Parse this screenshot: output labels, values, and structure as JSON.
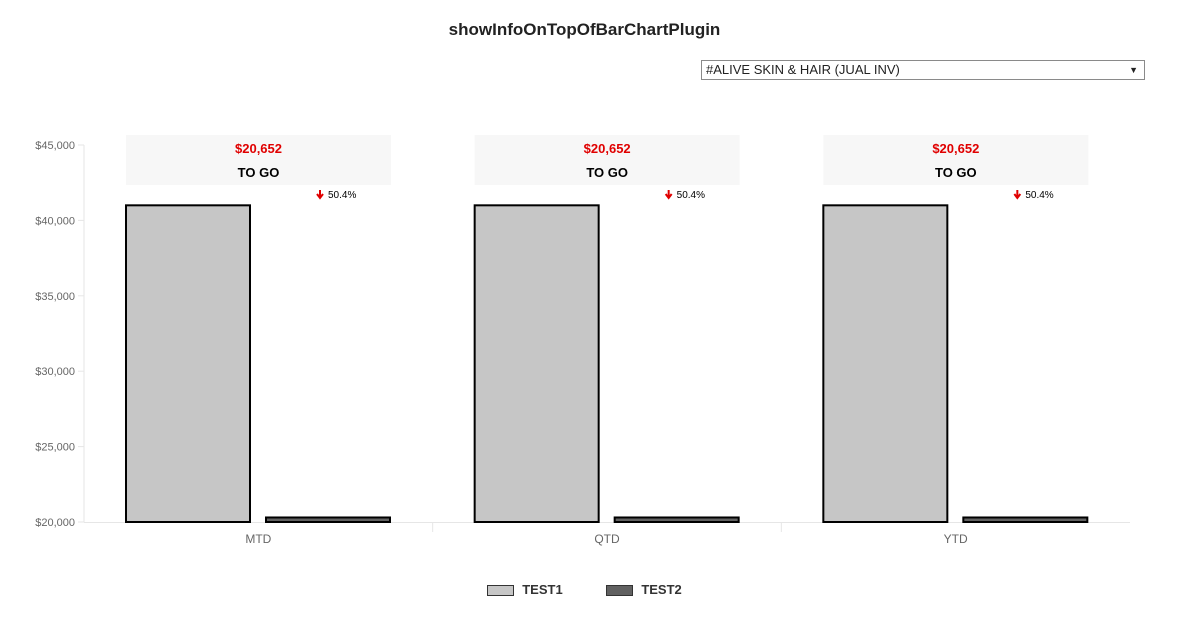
{
  "page": {
    "title": "showInfoOnTopOfBarChartPlugin"
  },
  "selector": {
    "selected": "#ALIVE SKIN & HAIR (JUAL INV)",
    "arrow_icon": "triangle-down-icon"
  },
  "chart_data": {
    "type": "bar",
    "categories": [
      "MTD",
      "QTD",
      "YTD"
    ],
    "series": [
      {
        "name": "TEST1",
        "values": [
          41000,
          41000,
          41000
        ],
        "color": "#c6c6c6"
      },
      {
        "name": "TEST2",
        "values": [
          20300,
          20300,
          20300
        ],
        "color": "#616161"
      }
    ],
    "ylim": [
      20000,
      45000
    ],
    "yticks": [
      20000,
      25000,
      30000,
      35000,
      40000,
      45000
    ],
    "ytick_labels": [
      "$20,000",
      "$25,000",
      "$30,000",
      "$35,000",
      "$40,000",
      "$45,000"
    ],
    "grid": false,
    "legend": "bottom",
    "info_boxes": [
      {
        "category": "MTD",
        "amount": "$20,652",
        "label": "TO GO",
        "change": "50.4%",
        "direction": "down"
      },
      {
        "category": "QTD",
        "amount": "$20,652",
        "label": "TO GO",
        "change": "50.4%",
        "direction": "down"
      },
      {
        "category": "YTD",
        "amount": "$20,652",
        "label": "TO GO",
        "change": "50.4%",
        "direction": "down"
      }
    ],
    "colors": {
      "amount": "#e00000",
      "down_arrow": "#e00000",
      "box_bg": "#f7f7f7"
    }
  }
}
